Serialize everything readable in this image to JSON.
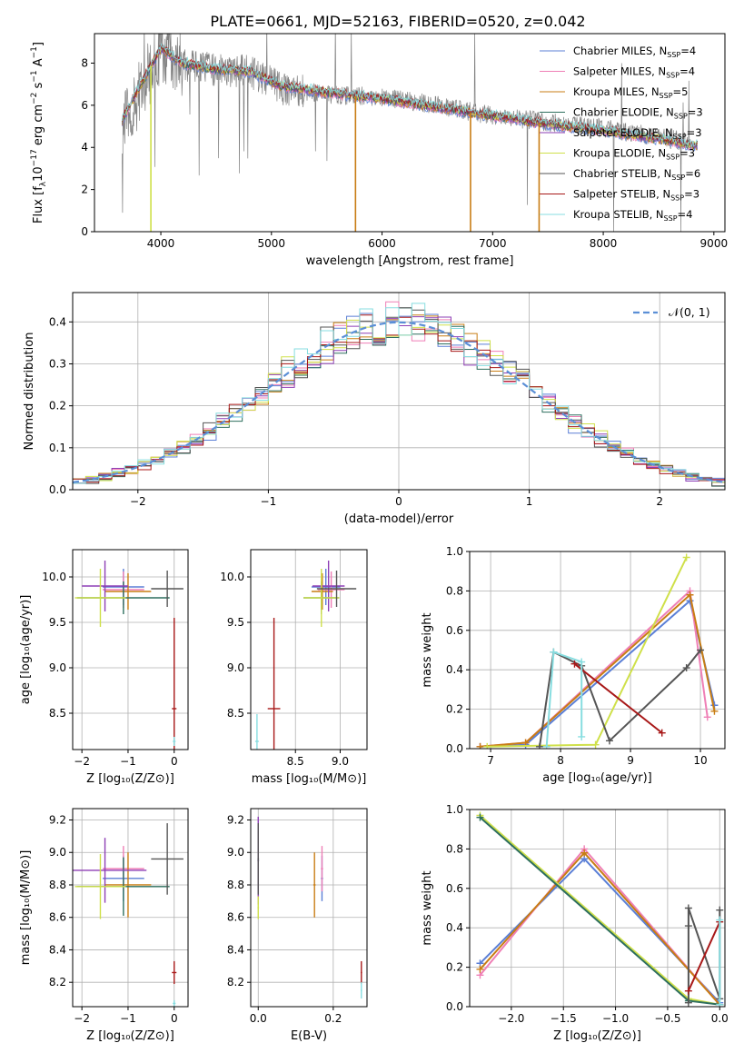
{
  "figure_title": "PLATE=0661, MJD=52163, FIBERID=0520, z=0.042",
  "colors": {
    "Chabrier MILES": "#5b7fd6",
    "Salpeter MILES": "#ef7fb6",
    "Kroupa MILES": "#c87d14",
    "Chabrier ELODIE": "#2e6f5e",
    "Salpeter ELODIE": "#8e3fb5",
    "Kroupa ELODIE": "#cfe04a",
    "Chabrier STELIB": "#555555",
    "Salpeter STELIB": "#a81818",
    "Kroupa STELIB": "#87dde0",
    "data": "#808080",
    "normal": "#5b8fd6",
    "grid": "#b0b0b0"
  },
  "chart_data": [
    {
      "id": "spectrum",
      "type": "line",
      "title": "PLATE=0661, MJD=52163, FIBERID=0520, z=0.042",
      "xlabel": "wavelength [Angstrom, rest frame]",
      "ylabel_main": "Flux [f",
      "ylabel_sub": "λ",
      "ylabel_rest": "10",
      "ylabel_exp1": "−17",
      "ylabel_mid": " erg cm",
      "ylabel_exp2": "−2",
      "ylabel_s": " s",
      "ylabel_exp3": "−1",
      "ylabel_end": " A",
      "ylabel_exp4": "−1",
      "ylabel_close": "]",
      "xlim": [
        3400,
        9100
      ],
      "ylim": [
        0,
        9.4
      ],
      "xticks": [
        4000,
        5000,
        6000,
        7000,
        8000,
        9000
      ],
      "yticks": [
        0,
        2,
        4,
        6,
        8
      ],
      "grid": false,
      "legend_position": "top-right",
      "data_continuum": {
        "x": [
          3650,
          3800,
          4000,
          4200,
          4500,
          4800,
          5100,
          5500,
          6000,
          6500,
          7000,
          7500,
          8000,
          8500,
          8800
        ],
        "y": [
          5.0,
          6.5,
          8.6,
          7.9,
          7.7,
          7.6,
          6.8,
          6.5,
          6.4,
          6.0,
          5.5,
          5.2,
          4.9,
          4.5,
          4.2
        ]
      },
      "model_continuum": {
        "x": [
          3650,
          3800,
          4000,
          4200,
          4500,
          4800,
          5100,
          5500,
          6000,
          6500,
          7000,
          7500,
          8000,
          8500,
          8800
        ],
        "y": [
          5.3,
          6.8,
          8.7,
          8.0,
          7.7,
          7.6,
          6.9,
          6.6,
          6.3,
          5.9,
          5.5,
          5.1,
          4.8,
          4.4,
          4.1
        ]
      },
      "dropouts": [
        {
          "series": "Kroupa ELODIE",
          "x": 3910
        },
        {
          "series": "Kroupa MILES",
          "x": 5760
        },
        {
          "series": "Kroupa MILES",
          "x": 6800
        },
        {
          "series": "Kroupa MILES",
          "x": 7420
        }
      ],
      "series": [
        {
          "name": "Chabrier MILES",
          "label_pre": "Chabrier MILES, N",
          "label_sub": "SSP",
          "label_post": "=4"
        },
        {
          "name": "Salpeter MILES",
          "label_pre": "Salpeter MILES, N",
          "label_sub": "SSP",
          "label_post": "=4"
        },
        {
          "name": "Kroupa MILES",
          "label_pre": "Kroupa MILES, N",
          "label_sub": "SSP",
          "label_post": "=5"
        },
        {
          "name": "Chabrier ELODIE",
          "label_pre": "Chabrier ELODIE, N",
          "label_sub": "SSP",
          "label_post": "=3"
        },
        {
          "name": "Salpeter ELODIE",
          "label_pre": "Salpeter ELODIE, N",
          "label_sub": "SSP",
          "label_post": "=3"
        },
        {
          "name": "Kroupa ELODIE",
          "label_pre": "Kroupa ELODIE, N",
          "label_sub": "SSP",
          "label_post": "=3"
        },
        {
          "name": "Chabrier STELIB",
          "label_pre": "Chabrier STELIB, N",
          "label_sub": "SSP",
          "label_post": "=6"
        },
        {
          "name": "Salpeter STELIB",
          "label_pre": "Salpeter STELIB, N",
          "label_sub": "SSP",
          "label_post": "=3"
        },
        {
          "name": "Kroupa STELIB",
          "label_pre": "Kroupa STELIB, N",
          "label_sub": "SSP",
          "label_post": "=4"
        }
      ]
    },
    {
      "id": "residuals",
      "type": "histogram",
      "xlabel": "(data-model)/error",
      "ylabel": "Normed distribution",
      "xlim": [
        -2.5,
        2.5
      ],
      "ylim": [
        0,
        0.47
      ],
      "xticks": [
        -2,
        -1,
        0,
        1,
        2
      ],
      "xtick_labels": [
        "−2",
        "−1",
        "0",
        "1",
        "2"
      ],
      "yticks": [
        0.0,
        0.1,
        0.2,
        0.3,
        0.4
      ],
      "ytick_labels": [
        "0.0",
        "0.1",
        "0.2",
        "0.3",
        "0.4"
      ],
      "grid": true,
      "legend_position": "top-right",
      "legend_label": "𝒩(0, 1)",
      "bin_edges_start": -2.5,
      "bin_width": 0.1,
      "curve": "normal(0,1) density"
    },
    {
      "id": "age_vs_Z",
      "type": "errorbar",
      "xlabel": "Z [log₁₀(Z/Z⊙)]",
      "ylabel": "age  [log₁₀(age/yr)]",
      "xlim": [
        -2.2,
        0.3
      ],
      "ylim": [
        8.1,
        10.3
      ],
      "xticks": [
        -2,
        -1,
        0
      ],
      "xtick_labels": [
        "−2",
        "−1",
        "0"
      ],
      "yticks": [
        8.5,
        9.0,
        9.5,
        10.0
      ],
      "ytick_labels": [
        "8.5",
        "9.0",
        "9.5",
        "10.0"
      ],
      "grid": true,
      "points": [
        {
          "series": "Chabrier MILES",
          "x": -1.1,
          "xerr": 0.45,
          "y": 9.89,
          "yerr": 0.2
        },
        {
          "series": "Salpeter MILES",
          "x": -1.1,
          "xerr": 0.45,
          "y": 9.86,
          "yerr": 0.2
        },
        {
          "series": "Kroupa MILES",
          "x": -1.0,
          "xerr": 0.5,
          "y": 9.84,
          "yerr": 0.2
        },
        {
          "series": "Chabrier ELODIE",
          "x": -1.1,
          "xerr": 1.0,
          "y": 9.77,
          "yerr": 0.18
        },
        {
          "series": "Salpeter ELODIE",
          "x": -1.5,
          "xerr": 0.5,
          "y": 9.9,
          "yerr": 0.28
        },
        {
          "series": "Kroupa ELODIE",
          "x": -1.6,
          "xerr": 0.55,
          "y": 9.77,
          "yerr": 0.32
        },
        {
          "series": "Chabrier STELIB",
          "x": -0.15,
          "xerr": 0.35,
          "y": 9.87,
          "yerr": 0.2
        },
        {
          "series": "Salpeter STELIB",
          "x": 0.0,
          "xerr": 0.05,
          "y": 8.55,
          "yerr": 1.0
        },
        {
          "series": "Kroupa STELIB",
          "x": 0.0,
          "xerr": 0.03,
          "y": 8.19,
          "yerr": 0.05
        }
      ]
    },
    {
      "id": "age_vs_mass",
      "type": "errorbar",
      "xlabel": "mass [log₁₀(M/M⊙)]",
      "ylabel": "",
      "xlim": [
        8.0,
        9.3
      ],
      "ylim": [
        8.1,
        10.3
      ],
      "xticks": [
        8.5,
        9.0
      ],
      "xtick_labels": [
        "8.5",
        "9.0"
      ],
      "yticks": [
        8.5,
        9.0,
        9.5,
        10.0
      ],
      "ytick_labels": [
        "8.5",
        "9.0",
        "9.5",
        "10.0"
      ],
      "grid": true,
      "points": [
        {
          "series": "Chabrier MILES",
          "x": 8.84,
          "xerr": 0.16,
          "y": 9.89,
          "yerr": 0.2
        },
        {
          "series": "Salpeter MILES",
          "x": 8.9,
          "xerr": 0.15,
          "y": 9.86,
          "yerr": 0.2
        },
        {
          "series": "Kroupa MILES",
          "x": 8.8,
          "xerr": 0.12,
          "y": 9.84,
          "yerr": 0.2
        },
        {
          "series": "Chabrier ELODIE",
          "x": 8.79,
          "xerr": 0.2,
          "y": 9.77,
          "yerr": 0.18
        },
        {
          "series": "Salpeter ELODIE",
          "x": 8.87,
          "xerr": 0.18,
          "y": 9.9,
          "yerr": 0.28
        },
        {
          "series": "Kroupa ELODIE",
          "x": 8.79,
          "xerr": 0.2,
          "y": 9.77,
          "yerr": 0.32
        },
        {
          "series": "Chabrier STELIB",
          "x": 8.96,
          "xerr": 0.22,
          "y": 9.87,
          "yerr": 0.2
        },
        {
          "series": "Salpeter STELIB",
          "x": 8.26,
          "xerr": 0.07,
          "y": 8.55,
          "yerr": 1.0
        },
        {
          "series": "Kroupa STELIB",
          "x": 8.07,
          "xerr": 0.02,
          "y": 8.19,
          "yerr": 0.3
        }
      ]
    },
    {
      "id": "weight_vs_age",
      "type": "line",
      "xlabel": "age  [log₁₀(age/yr)]",
      "ylabel": "mass weight",
      "xlim": [
        6.7,
        10.35
      ],
      "ylim": [
        0,
        1.0
      ],
      "xticks": [
        7,
        8,
        9,
        10
      ],
      "yticks": [
        0.0,
        0.2,
        0.4,
        0.6,
        0.8,
        1.0
      ],
      "ytick_labels": [
        "0.0",
        "0.2",
        "0.4",
        "0.6",
        "0.8",
        "1.0"
      ],
      "grid": true,
      "series": [
        {
          "name": "Chabrier MILES",
          "x": [
            6.85,
            7.5,
            9.85,
            10.2
          ],
          "y": [
            0.01,
            0.02,
            0.75,
            0.22
          ]
        },
        {
          "name": "Salpeter MILES",
          "x": [
            6.85,
            7.5,
            9.85,
            10.1
          ],
          "y": [
            0.01,
            0.03,
            0.8,
            0.16
          ]
        },
        {
          "name": "Kroupa MILES",
          "x": [
            6.85,
            7.5,
            9.85,
            10.2
          ],
          "y": [
            0.01,
            0.03,
            0.78,
            0.19
          ]
        },
        {
          "name": "Kroupa ELODIE",
          "x": [
            6.95,
            8.5,
            9.8
          ],
          "y": [
            0.01,
            0.02,
            0.97
          ]
        },
        {
          "name": "Chabrier STELIB",
          "x": [
            7.7,
            7.9,
            8.3,
            8.7,
            9.8,
            10.0
          ],
          "y": [
            0.01,
            0.49,
            0.42,
            0.04,
            0.41,
            0.5
          ]
        },
        {
          "name": "Salpeter STELIB",
          "x": [
            8.2,
            9.45
          ],
          "y": [
            0.43,
            0.08
          ]
        },
        {
          "name": "Kroupa STELIB",
          "x": [
            7.8,
            7.9,
            8.3,
            8.3
          ],
          "y": [
            0.01,
            0.49,
            0.44,
            0.06
          ]
        }
      ]
    },
    {
      "id": "mass_vs_Z",
      "type": "errorbar",
      "xlabel": "Z [log₁₀(Z/Z⊙)]",
      "ylabel": "mass [log₁₀(M/M⊙)]",
      "xlim": [
        -2.2,
        0.3
      ],
      "ylim": [
        8.05,
        9.27
      ],
      "xticks": [
        -2,
        -1,
        0
      ],
      "xtick_labels": [
        "−2",
        "−1",
        "0"
      ],
      "yticks": [
        8.2,
        8.4,
        8.6,
        8.8,
        9.0,
        9.2
      ],
      "ytick_labels": [
        "8.2",
        "8.4",
        "8.6",
        "8.8",
        "9.0",
        "9.2"
      ],
      "grid": true,
      "points": [
        {
          "series": "Chabrier MILES",
          "x": -1.1,
          "xerr": 0.45,
          "y": 8.84,
          "yerr": 0.14
        },
        {
          "series": "Salpeter MILES",
          "x": -1.1,
          "xerr": 0.45,
          "y": 8.9,
          "yerr": 0.14
        },
        {
          "series": "Kroupa MILES",
          "x": -1.0,
          "xerr": 0.5,
          "y": 8.8,
          "yerr": 0.2
        },
        {
          "series": "Chabrier ELODIE",
          "x": -1.1,
          "xerr": 1.0,
          "y": 8.79,
          "yerr": 0.18
        },
        {
          "series": "Salpeter ELODIE",
          "x": -1.5,
          "xerr": 0.9,
          "y": 8.89,
          "yerr": 0.2
        },
        {
          "series": "Kroupa ELODIE",
          "x": -1.6,
          "xerr": 0.55,
          "y": 8.79,
          "yerr": 0.2
        },
        {
          "series": "Chabrier STELIB",
          "x": -0.15,
          "xerr": 0.35,
          "y": 8.96,
          "yerr": 0.22
        },
        {
          "series": "Salpeter STELIB",
          "x": 0.0,
          "xerr": 0.05,
          "y": 8.26,
          "yerr": 0.07
        },
        {
          "series": "Kroupa STELIB",
          "x": 0.0,
          "xerr": 0.03,
          "y": 8.07,
          "yerr": 0.02
        }
      ]
    },
    {
      "id": "mass_vs_ebv",
      "type": "errorbar",
      "xlabel": "E(B-V)",
      "ylabel": "",
      "xlim": [
        -0.02,
        0.29
      ],
      "ylim": [
        8.05,
        9.27
      ],
      "xticks": [
        0.0,
        0.2
      ],
      "xtick_labels": [
        "0.0",
        "0.2"
      ],
      "yticks": [
        8.2,
        8.4,
        8.6,
        8.8,
        9.0,
        9.2
      ],
      "ytick_labels": [
        "8.2",
        "8.4",
        "8.6",
        "8.8",
        "9.0",
        "9.2"
      ],
      "grid": true,
      "points": [
        {
          "series": "Chabrier MILES",
          "x": 0.17,
          "xerr": 0.003,
          "y": 8.84,
          "yerr": 0.14
        },
        {
          "series": "Salpeter MILES",
          "x": 0.17,
          "xerr": 0.003,
          "y": 8.9,
          "yerr": 0.14
        },
        {
          "series": "Kroupa MILES",
          "x": 0.15,
          "xerr": 0.003,
          "y": 8.8,
          "yerr": 0.2
        },
        {
          "series": "Chabrier ELODIE",
          "x": 0.0,
          "xerr": 0.002,
          "y": 8.95,
          "yerr": 0.18
        },
        {
          "series": "Salpeter ELODIE",
          "x": 0.0,
          "xerr": 0.002,
          "y": 8.95,
          "yerr": 0.27
        },
        {
          "series": "Kroupa ELODIE",
          "x": 0.0,
          "xerr": 0.002,
          "y": 8.66,
          "yerr": 0.07
        },
        {
          "series": "Chabrier STELIB",
          "x": 0.0,
          "xerr": 0.002,
          "y": 8.96,
          "yerr": 0.22
        },
        {
          "series": "Salpeter STELIB",
          "x": 0.275,
          "xerr": 0.002,
          "y": 8.26,
          "yerr": 0.07
        },
        {
          "series": "Kroupa STELIB",
          "x": 0.275,
          "xerr": 0.002,
          "y": 8.15,
          "yerr": 0.05
        }
      ]
    },
    {
      "id": "weight_vs_Z",
      "type": "line",
      "xlabel": "Z [log₁₀(Z/Z⊙)]",
      "ylabel": "mass weight",
      "xlim": [
        -2.4,
        0.05
      ],
      "ylim": [
        0,
        1.0
      ],
      "xticks": [
        -2.0,
        -1.5,
        -1.0,
        -0.5,
        0.0
      ],
      "xtick_labels": [
        "−2.0",
        "−1.5",
        "−1.0",
        "−0.5",
        "0.0"
      ],
      "yticks": [
        0.0,
        0.2,
        0.4,
        0.6,
        0.8,
        1.0
      ],
      "ytick_labels": [
        "0.0",
        "0.2",
        "0.4",
        "0.6",
        "0.8",
        "1.0"
      ],
      "grid": true,
      "series": [
        {
          "name": "Chabrier MILES",
          "x": [
            -2.3,
            -1.3,
            0.0
          ],
          "y": [
            0.22,
            0.75,
            0.02
          ]
        },
        {
          "name": "Salpeter MILES",
          "x": [
            -2.3,
            -1.3,
            0.0
          ],
          "y": [
            0.16,
            0.8,
            0.01
          ]
        },
        {
          "name": "Kroupa MILES",
          "x": [
            -2.3,
            -1.3,
            0.0
          ],
          "y": [
            0.19,
            0.78,
            0.01
          ]
        },
        {
          "name": "Kroupa ELODIE",
          "x": [
            -2.3,
            -0.3,
            0.0
          ],
          "y": [
            0.97,
            0.04,
            0.01
          ]
        },
        {
          "name": "Chabrier ELODIE",
          "x": [
            -2.3,
            -0.3,
            0.0
          ],
          "y": [
            0.96,
            0.03,
            0.01
          ]
        },
        {
          "name": "Chabrier STELIB",
          "x": [
            -0.3,
            -0.3,
            -0.3,
            0.0,
            0.0
          ],
          "y": [
            0.02,
            0.41,
            0.5,
            0.04,
            0.49
          ]
        },
        {
          "name": "Salpeter STELIB",
          "x": [
            -0.3,
            0.0
          ],
          "y": [
            0.08,
            0.43
          ]
        },
        {
          "name": "Kroupa STELIB",
          "x": [
            0.0,
            0.0
          ],
          "y": [
            0.44,
            0.01
          ]
        }
      ]
    }
  ]
}
